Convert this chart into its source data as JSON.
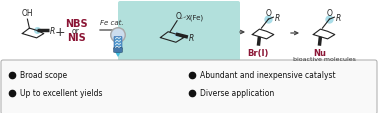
{
  "bg_color": "#ffffff",
  "box_edge_color": "#aaaaaa",
  "teal_bg": "#b2e0dc",
  "dark_red": "#8b1535",
  "bullet_color": "#111111",
  "bullet_points_left": [
    "Broad scope",
    "Up to excellent yields"
  ],
  "bullet_points_right": [
    "Abundant and inexpensive catalyst",
    "Diverse application"
  ],
  "arrow_color": "#444444",
  "line_color": "#222222",
  "fe_cat_label": "Fe cat.",
  "nbs_label": "NBS",
  "nis_label": "NIS",
  "or_label": "or",
  "br_label": "Br(I)",
  "nu_label": "Nu",
  "bioactive_label": "bioactive molecules",
  "plus_label": "+",
  "o_label": "O",
  "r_label": "R",
  "x_label": "X(Fe)",
  "figsize": [
    3.78,
    1.14
  ],
  "dpi": 100
}
